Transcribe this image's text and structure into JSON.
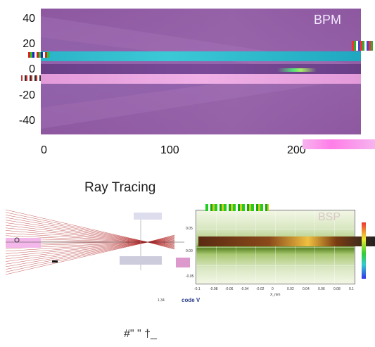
{
  "bpm": {
    "label": "BPM",
    "y_ticks": [
      "40",
      "20",
      "0",
      "-20",
      "-40"
    ],
    "x_ticks": [
      "0",
      "100",
      "200"
    ]
  },
  "ray_tracing": {
    "label": "Ray Tracing"
  },
  "bsp": {
    "label": "BSP",
    "y_ticks": [
      "0.05",
      "0.00",
      "-0.05"
    ],
    "x_ticks": [
      "-0.1",
      "-0.08",
      "-0.06",
      "-0.04",
      "-0.02",
      "0",
      "0.02",
      "0.04",
      "0.06",
      "0.08",
      "0.1"
    ],
    "x_label": "X_mm"
  },
  "captions": {
    "scale": "1.34 ",
    "code": "code V"
  },
  "footer": "#\" \" †_",
  "colors": {
    "bpm_background": "#8f5aa1",
    "bpm_cyan_band": "#2bb3c7",
    "bpm_pink_band": "#e39ad9",
    "ray_color": "#b22222",
    "bsp_green": "#5f8a2a"
  }
}
